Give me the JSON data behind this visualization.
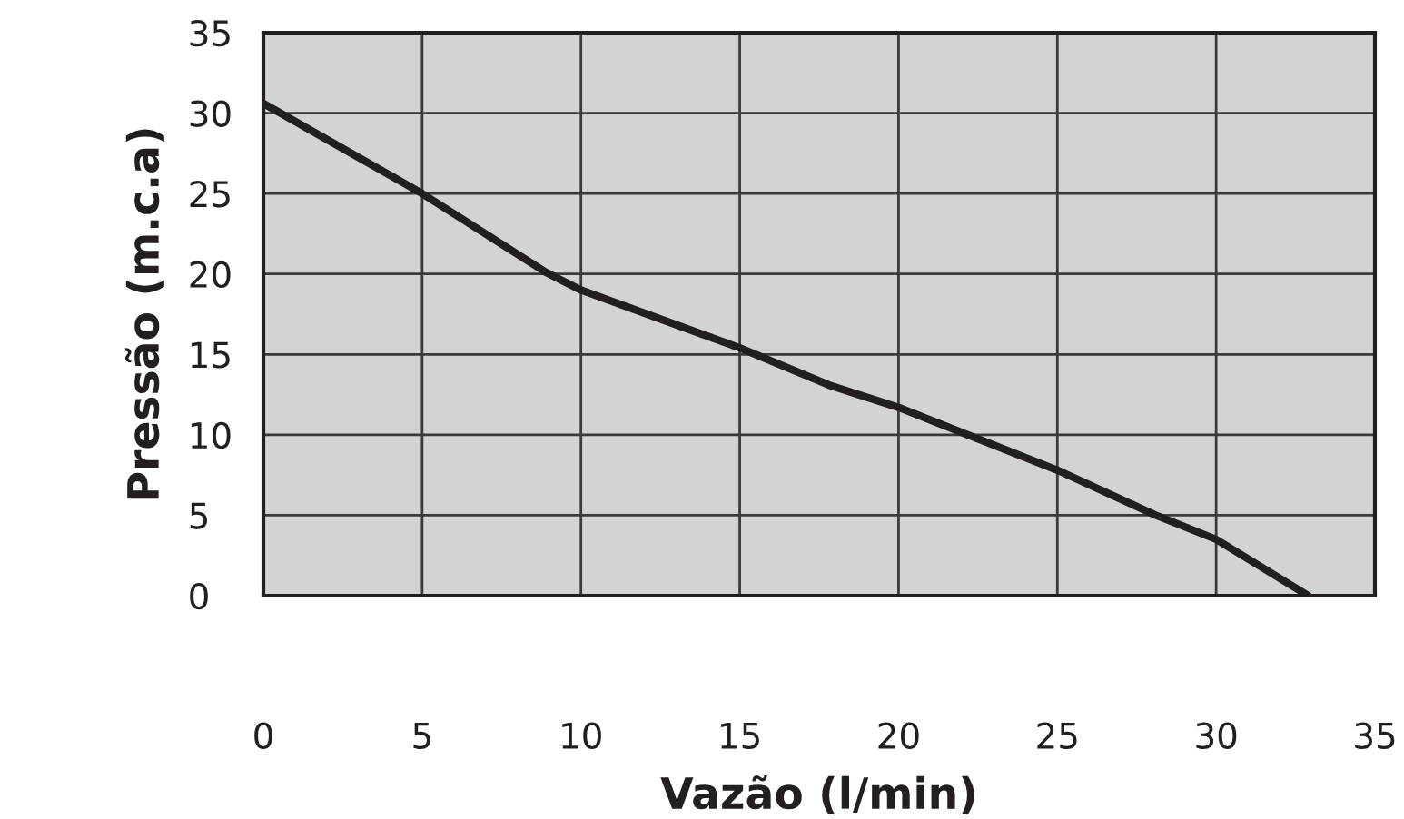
{
  "chart_data": {
    "type": "line",
    "xlabel": "Vazão (l/min)",
    "ylabel": "Pressão (m.c.a)",
    "x": [
      0,
      5,
      8.9,
      10,
      15,
      17.8,
      20,
      25,
      28.1,
      30,
      32.9
    ],
    "series": [
      {
        "color": "#231f20",
        "values": [
          30.6,
          25,
          20.1,
          19.0,
          15.4,
          13.1,
          11.7,
          7.8,
          5,
          3.5,
          0
        ]
      }
    ],
    "xlim": [
      0,
      35
    ],
    "ylim": [
      0,
      35
    ],
    "xticks": [
      0,
      5,
      10,
      15,
      20,
      25,
      30,
      35
    ],
    "yticks": [
      0,
      5,
      10,
      15,
      20,
      25,
      30,
      35
    ],
    "grid": true,
    "line_style": "solid",
    "marker": "none"
  }
}
